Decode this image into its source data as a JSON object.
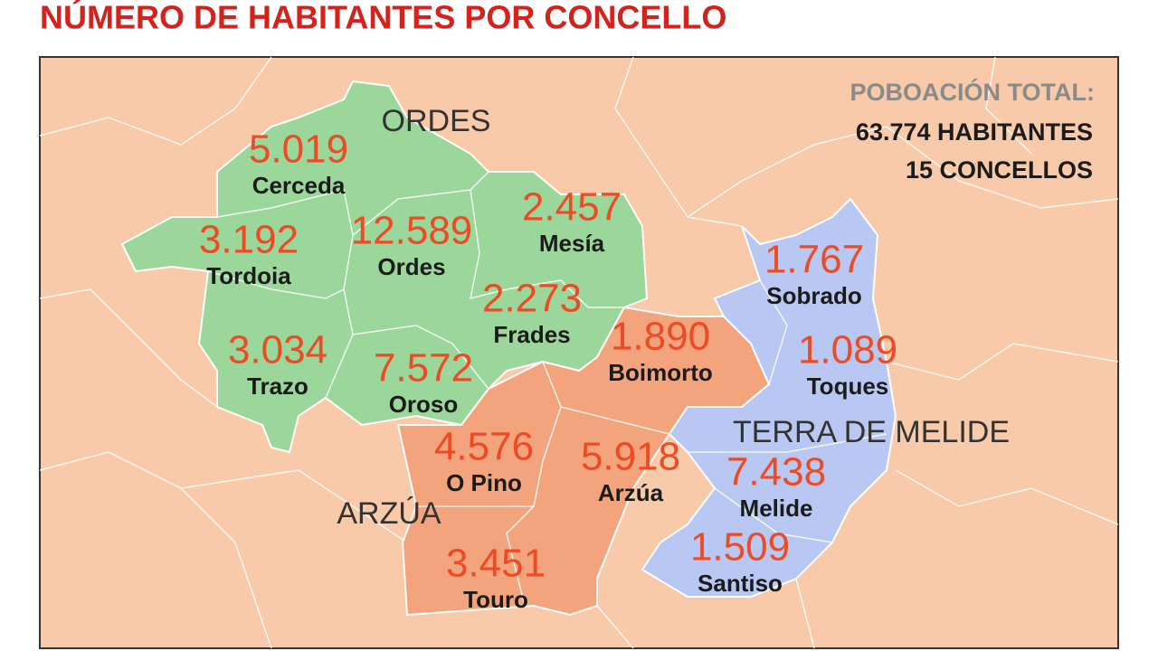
{
  "title": "NÚMERO DE HABITANTES POR CONCELLO",
  "summary": {
    "label": "POBOACIÓN TOTAL:",
    "population": "63.774 HABITANTES",
    "count": "15 CONCELLOS"
  },
  "comarcas": [
    "ORDES",
    "ARZÚA",
    "TERRA DE MELIDE"
  ],
  "municipalities": [
    {
      "name": "Cerceda",
      "population": "5.019"
    },
    {
      "name": "Tordoia",
      "population": "3.192"
    },
    {
      "name": "Trazo",
      "population": "3.034"
    },
    {
      "name": "Ordes",
      "population": "12.589"
    },
    {
      "name": "Oroso",
      "population": "7.572"
    },
    {
      "name": "Mesía",
      "population": "2.457"
    },
    {
      "name": "Frades",
      "population": "2.273"
    },
    {
      "name": "Boimorto",
      "population": "1.890"
    },
    {
      "name": "Sobrado",
      "population": "1.767"
    },
    {
      "name": "Toques",
      "population": "1.089"
    },
    {
      "name": "O Pino",
      "population": "4.576"
    },
    {
      "name": "Arzúa",
      "population": "5.918"
    },
    {
      "name": "Melide",
      "population": "7.438"
    },
    {
      "name": "Santiso",
      "population": "1.509"
    },
    {
      "name": "Touro",
      "population": "3.451"
    }
  ]
}
